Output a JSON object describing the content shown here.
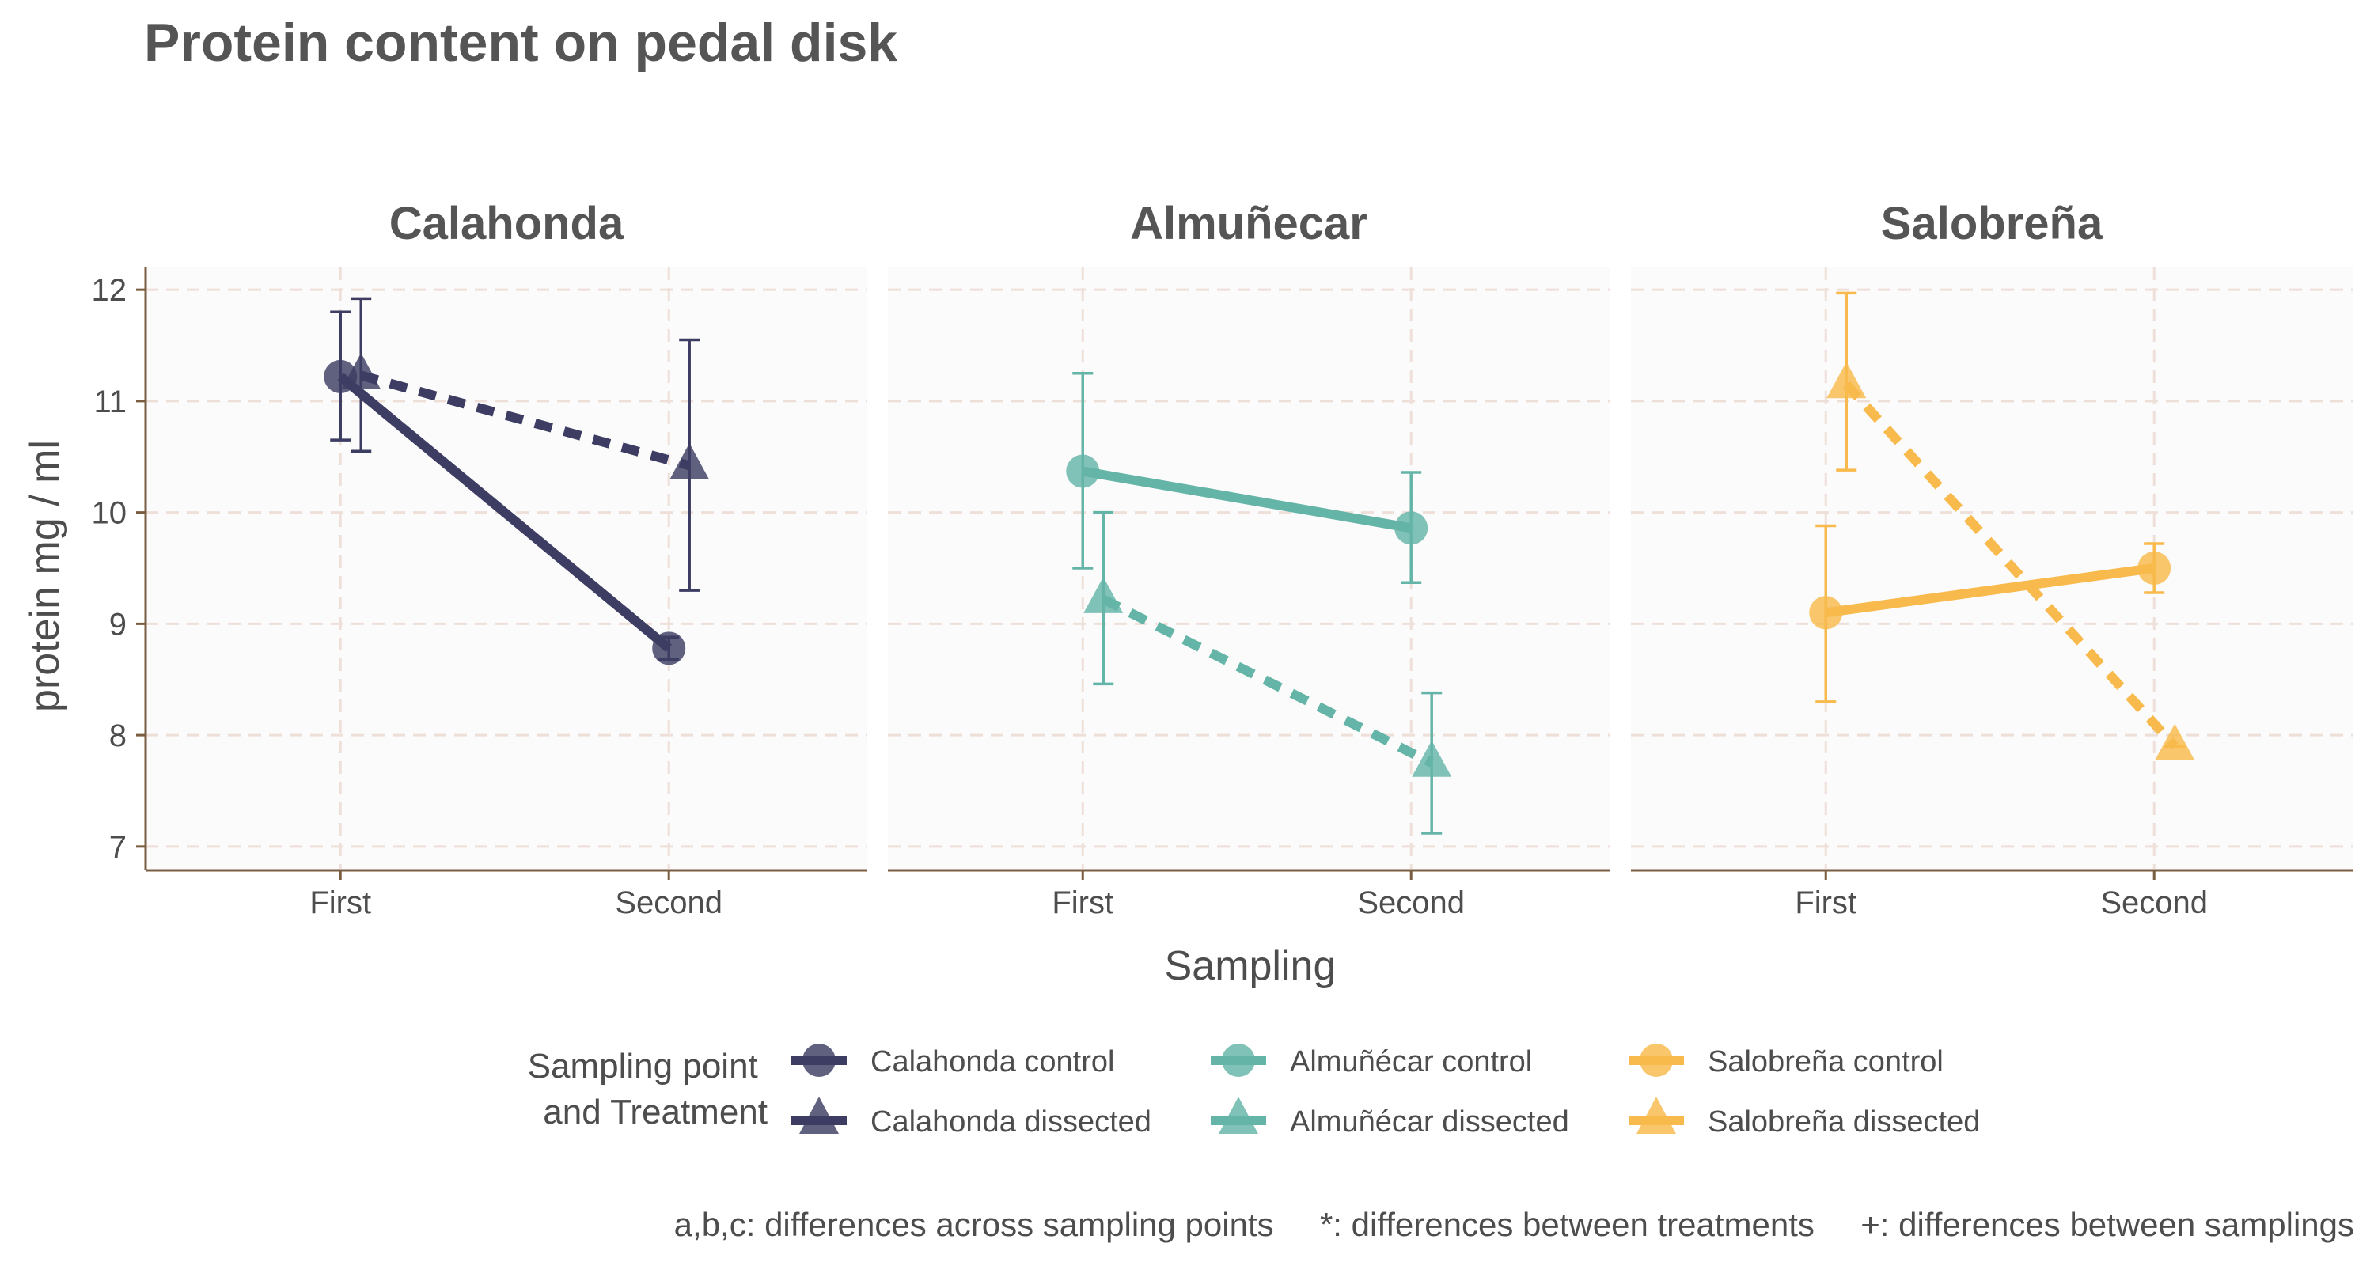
{
  "chart_data": {
    "type": "line",
    "title": "Protein content on pedal disk",
    "xlabel": "Sampling",
    "ylabel": "protein mg / ml",
    "categories": [
      "First",
      "Second"
    ],
    "ylim": [
      6.8,
      12.2
    ],
    "yticks": [
      7,
      8,
      9,
      10,
      11,
      12
    ],
    "grid": true,
    "legend_position": "bottom",
    "legend_title": "Sampling point\nand Treatment",
    "legend_title_lines": [
      "Sampling point",
      "and Treatment"
    ],
    "caption": "a,b,c: differences across sampling points     *: differences between treatments     +: differences between samplings",
    "panels": [
      {
        "name": "Calahonda",
        "color": "#3d3d63",
        "series": [
          {
            "name": "Calahonda control",
            "treatment": "control",
            "values": [
              11.22,
              8.78
            ],
            "error_low": [
              10.65,
              8.68
            ],
            "error_high": [
              11.8,
              8.88
            ]
          },
          {
            "name": "Calahonda dissected",
            "treatment": "dissected",
            "values": [
              11.23,
              10.42
            ],
            "error_low": [
              10.55,
              9.3
            ],
            "error_high": [
              11.92,
              11.55
            ]
          }
        ]
      },
      {
        "name": "Almuñecar",
        "color": "#64b5a8",
        "series": [
          {
            "name": "Almuñécar control",
            "treatment": "control",
            "values": [
              10.37,
              9.86
            ],
            "error_low": [
              9.5,
              9.37
            ],
            "error_high": [
              11.25,
              10.36
            ]
          },
          {
            "name": "Almuñécar dissected",
            "treatment": "dissected",
            "values": [
              9.22,
              7.75
            ],
            "error_low": [
              8.46,
              7.12
            ],
            "error_high": [
              10.0,
              8.38
            ]
          }
        ]
      },
      {
        "name": "Salobreña",
        "color": "#f8ba4c",
        "series": [
          {
            "name": "Salobreña control",
            "treatment": "control",
            "values": [
              9.1,
              9.5
            ],
            "error_low": [
              8.3,
              9.28
            ],
            "error_high": [
              9.88,
              9.72
            ]
          },
          {
            "name": "Salobreña dissected",
            "treatment": "dissected",
            "values": [
              11.15,
              7.9
            ],
            "error_low": [
              10.38,
              7.9
            ],
            "error_high": [
              11.97,
              7.9
            ]
          }
        ]
      }
    ]
  }
}
